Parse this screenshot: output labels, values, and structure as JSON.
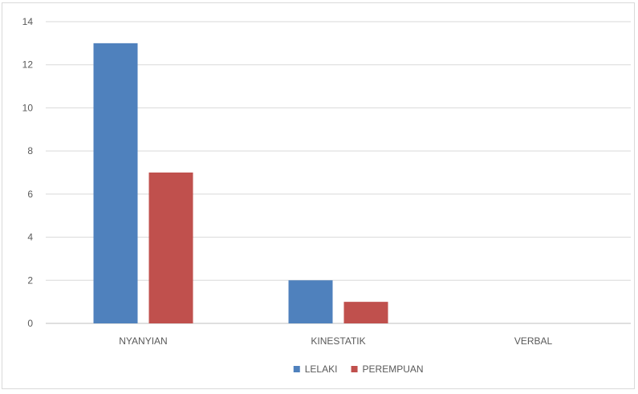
{
  "chart_data": {
    "type": "bar",
    "categories": [
      "NYANYIAN",
      "KINESTATIK",
      "VERBAL"
    ],
    "series": [
      {
        "name": "LELAKI",
        "values": [
          13,
          2,
          0
        ],
        "color": "#4f81bd"
      },
      {
        "name": "PEREMPUAN",
        "values": [
          7,
          1,
          0
        ],
        "color": "#c0504d"
      }
    ],
    "yticks": [
      0,
      2,
      4,
      6,
      8,
      10,
      12,
      14
    ],
    "ylim": [
      0,
      14
    ],
    "grid": true,
    "legend_position": "bottom"
  }
}
